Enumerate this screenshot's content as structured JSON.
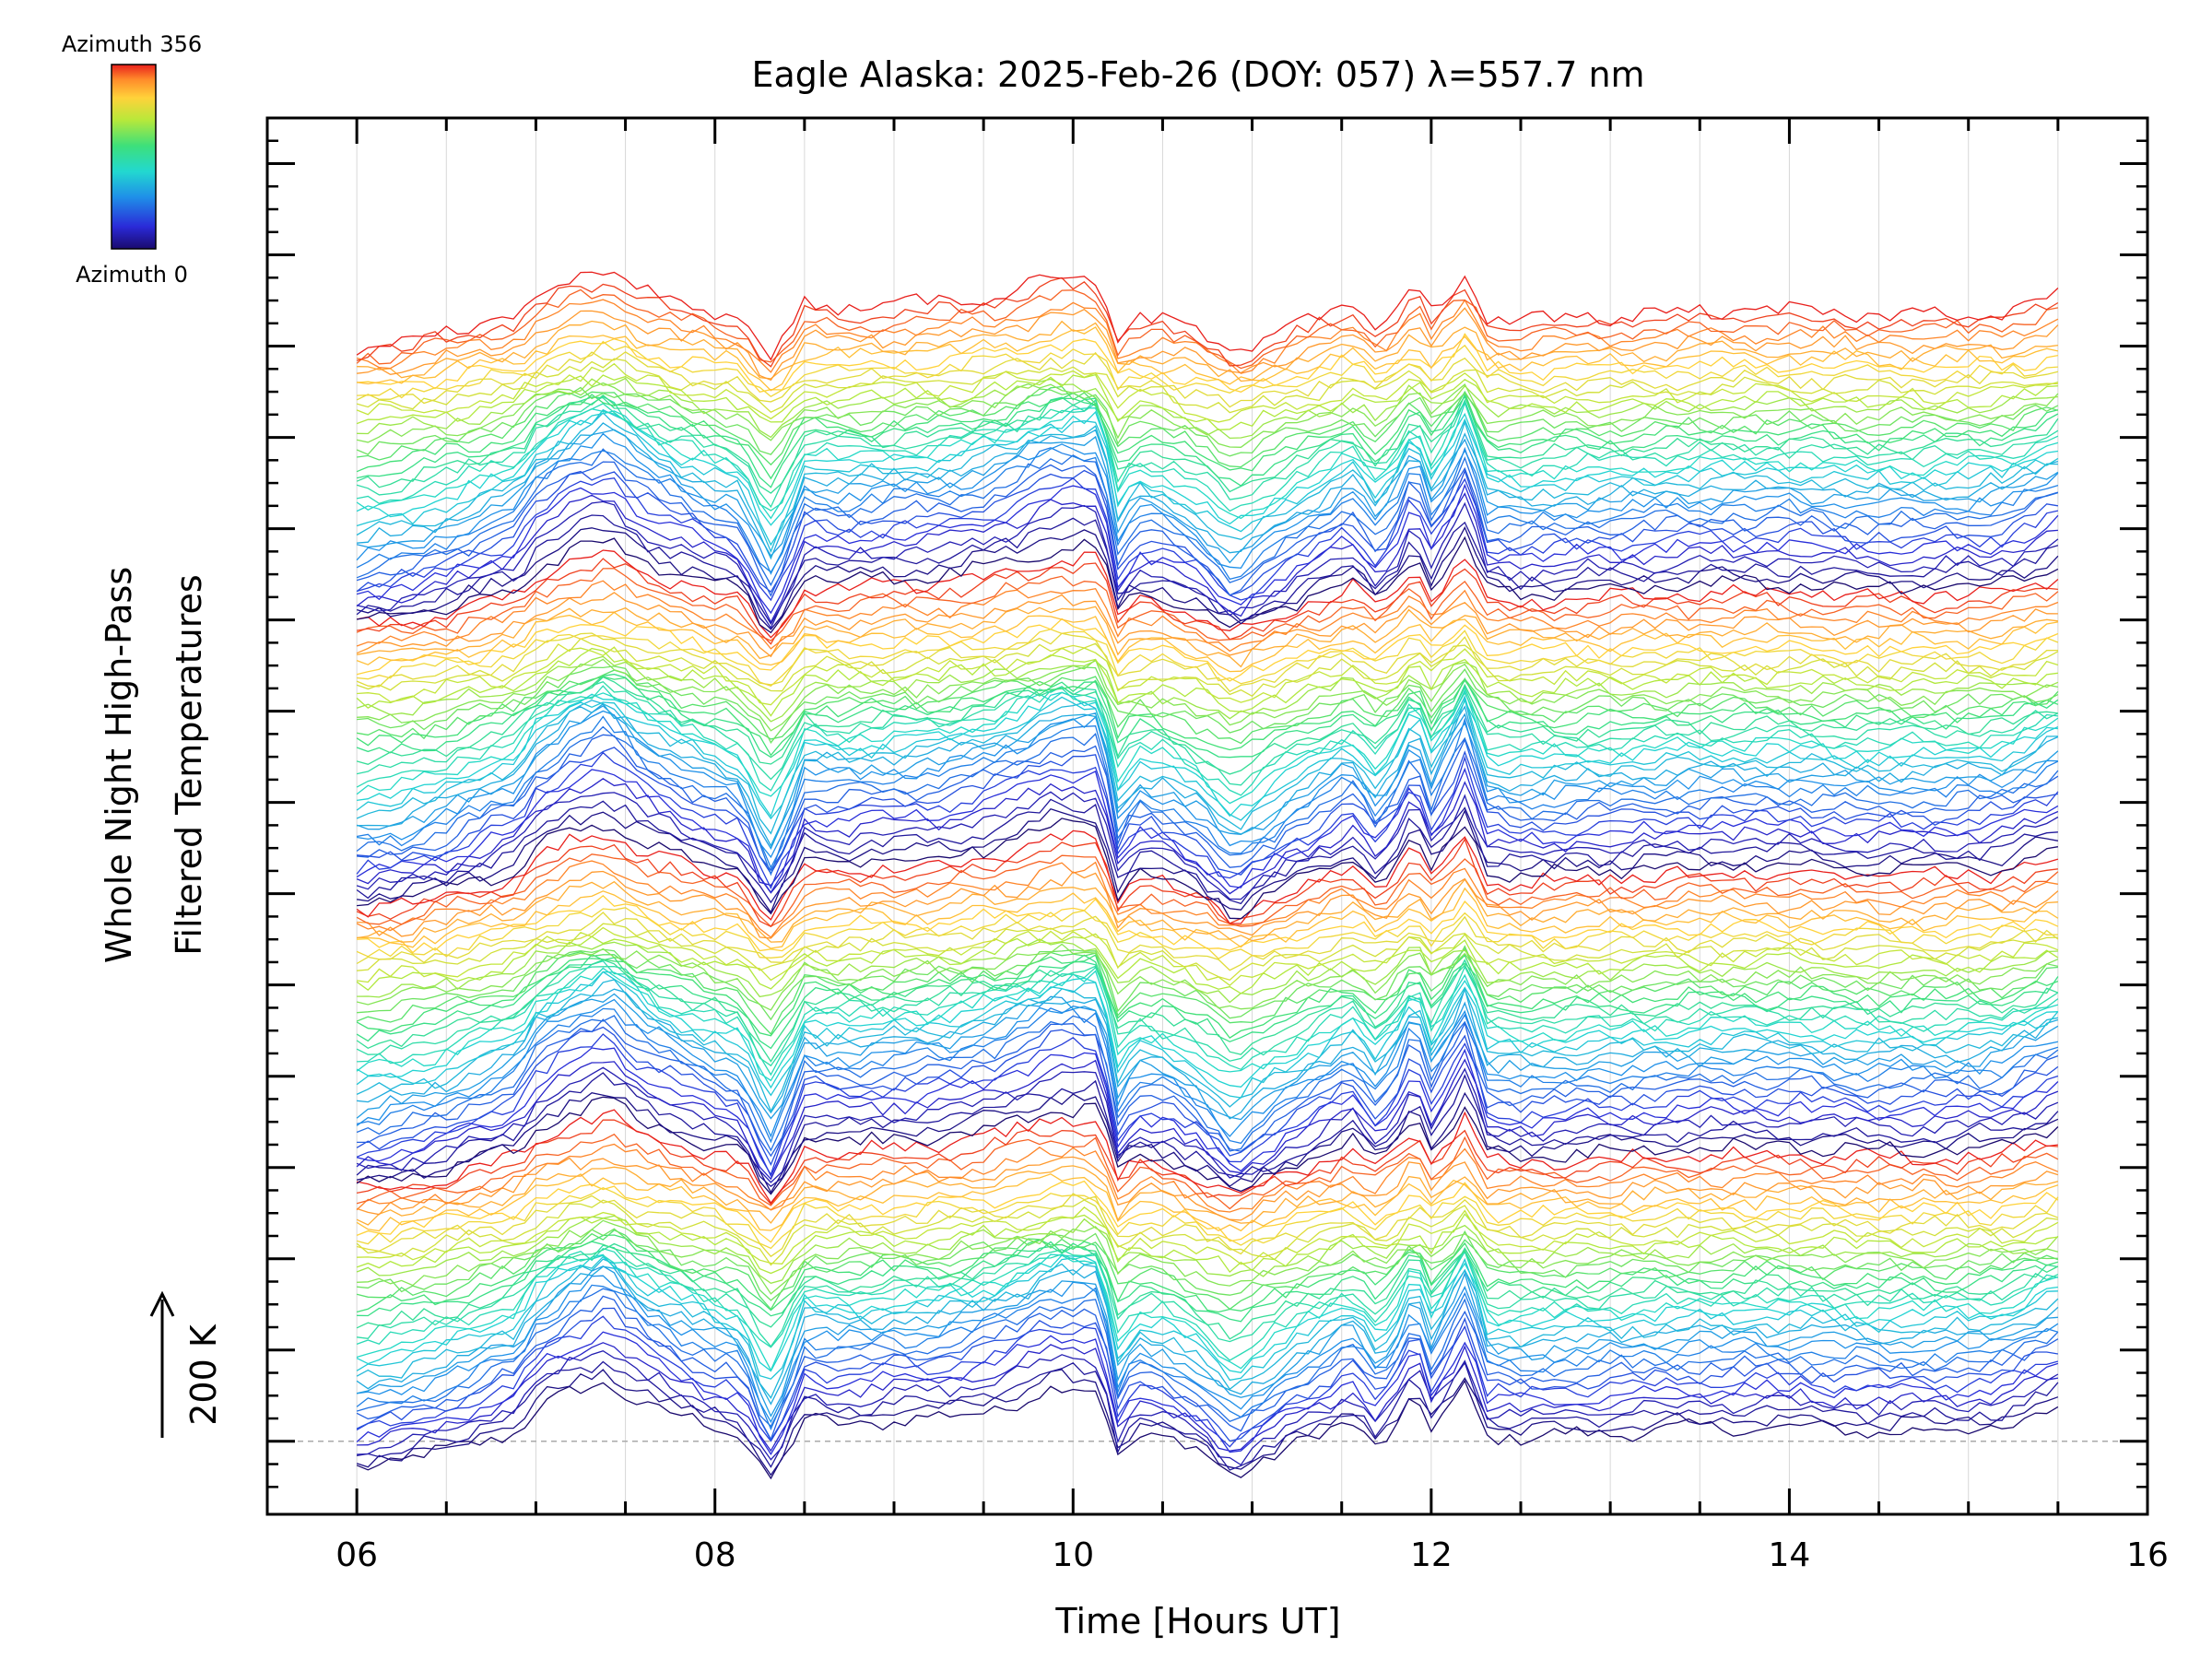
{
  "chart_data": {
    "type": "line",
    "title": "Eagle Alaska: 2025-Feb-26 (DOY: 057) λ=557.7 nm",
    "xlabel": "Time [Hours UT]",
    "ylabel_line1": "Whole Night High-Pass",
    "ylabel_line2": "Filtered Temperatures",
    "scale_label": "200 K",
    "scale_value_K": 200,
    "xlim": [
      5.5,
      16
    ],
    "x_ticks": [
      6,
      8,
      10,
      12,
      14,
      16
    ],
    "x_tick_labels": [
      "06",
      "08",
      "10",
      "12",
      "14",
      "16"
    ],
    "ylim_K": [
      -80,
      1450
    ],
    "baseline_K": 0,
    "grid": true,
    "colorbar": {
      "top_label": "Azimuth 356",
      "bottom_label": "Azimuth 0",
      "colormap": "rainbow",
      "min_azimuth": 0,
      "max_azimuth": 356
    },
    "series_count": 160,
    "series_offset_K": 7.7,
    "time_start": 6.0,
    "time_end": 15.55,
    "time_step": 0.0625,
    "common_pattern": {
      "x": [
        6.0,
        6.25,
        6.5,
        6.75,
        6.9,
        7.0,
        7.2,
        7.4,
        7.6,
        7.8,
        8.0,
        8.15,
        8.3,
        8.4,
        8.5,
        8.7,
        9.0,
        9.3,
        9.6,
        9.9,
        10.15,
        10.25,
        10.35,
        10.5,
        10.7,
        10.9,
        11.0,
        11.2,
        11.4,
        11.55,
        11.7,
        11.85,
        11.9,
        12.0,
        12.1,
        12.2,
        12.3,
        12.5,
        12.8,
        13.2,
        13.6,
        14.0,
        14.4,
        14.8,
        15.2,
        15.55
      ],
      "y_K": [
        -35,
        -28,
        -15,
        5,
        15,
        45,
        70,
        85,
        55,
        35,
        20,
        10,
        -55,
        -20,
        30,
        25,
        30,
        35,
        50,
        75,
        75,
        -20,
        10,
        5,
        -15,
        -50,
        -35,
        -10,
        10,
        30,
        -5,
        35,
        70,
        15,
        45,
        85,
        10,
        5,
        10,
        15,
        20,
        20,
        15,
        15,
        20,
        50
      ]
    },
    "legend": "colorbar top-left"
  }
}
